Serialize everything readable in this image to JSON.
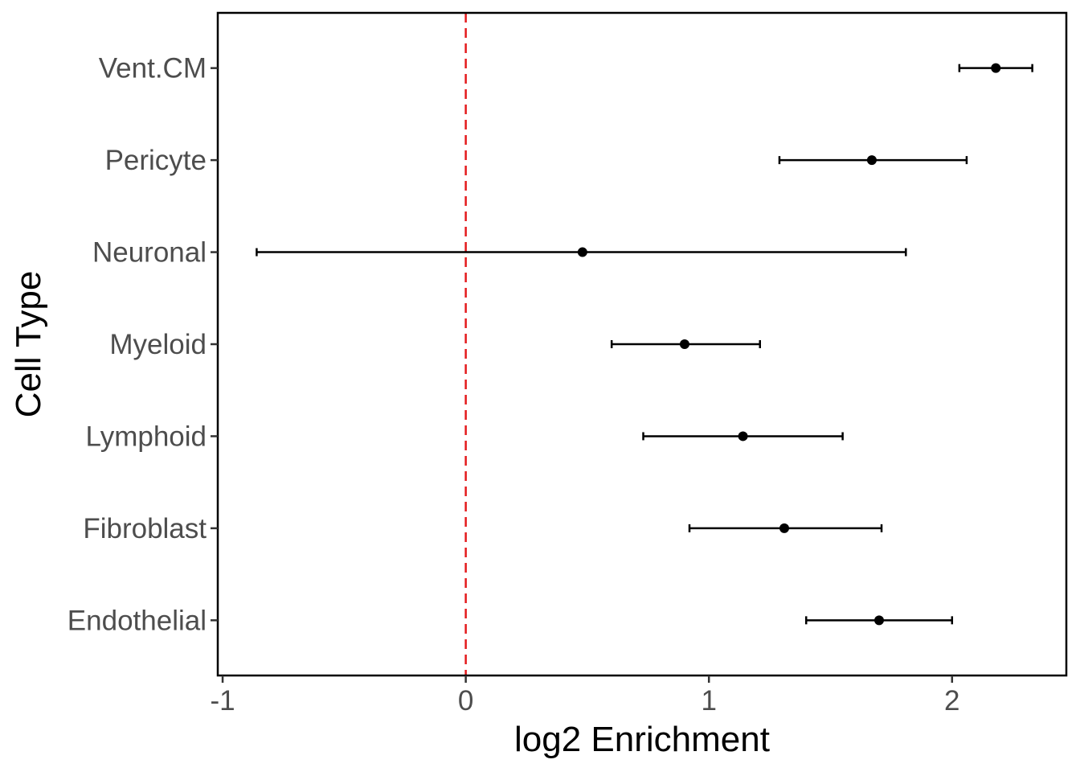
{
  "chart_data": {
    "type": "scatter",
    "subtype": "forest-plot",
    "title": "",
    "xlabel": "log2 Enrichment",
    "ylabel": "Cell Type",
    "xlim": [
      -1.02,
      2.47
    ],
    "x_ticks": [
      -1,
      0,
      1,
      2
    ],
    "x_tick_labels": [
      "-1",
      "0",
      "1",
      "2"
    ],
    "reference_line": {
      "x": 0,
      "style": "dashed",
      "color": "#e41a1c"
    },
    "grid": false,
    "legend": "none",
    "point_color": "#000000",
    "categories": [
      "Vent.CM",
      "Pericyte",
      "Neuronal",
      "Myeloid",
      "Lymphoid",
      "Fibroblast",
      "Endothelial"
    ],
    "points": [
      {
        "category": "Vent.CM",
        "estimate": 2.18,
        "lower": 2.03,
        "upper": 2.33
      },
      {
        "category": "Pericyte",
        "estimate": 1.67,
        "lower": 1.29,
        "upper": 2.06
      },
      {
        "category": "Neuronal",
        "estimate": 0.48,
        "lower": -0.86,
        "upper": 1.81
      },
      {
        "category": "Myeloid",
        "estimate": 0.9,
        "lower": 0.6,
        "upper": 1.21
      },
      {
        "category": "Lymphoid",
        "estimate": 1.14,
        "lower": 0.73,
        "upper": 1.55
      },
      {
        "category": "Fibroblast",
        "estimate": 1.31,
        "lower": 0.92,
        "upper": 1.71
      },
      {
        "category": "Endothelial",
        "estimate": 1.7,
        "lower": 1.4,
        "upper": 2.0
      }
    ]
  }
}
